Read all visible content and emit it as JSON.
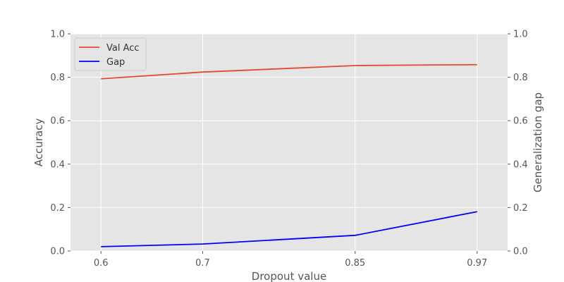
{
  "chart_data": {
    "type": "line",
    "x": [
      0.6,
      0.7,
      0.85,
      0.97
    ],
    "x_tick_labels": [
      "0.6",
      "0.7",
      "0.85",
      "0.97"
    ],
    "xlabel": "Dropout value",
    "ylabel_left": "Accuracy",
    "ylabel_right": "Generalization gap",
    "ylim_left": [
      0,
      1
    ],
    "ylim_right": [
      0,
      1
    ],
    "y_ticks_left": [
      "0.0",
      "0.2",
      "0.4",
      "0.6",
      "0.8",
      "1.0"
    ],
    "y_ticks_right": [
      "0.0",
      "0.2",
      "0.4",
      "0.6",
      "0.8",
      "1.0"
    ],
    "grid": true,
    "legend_position": "top-left",
    "background_color": "#e5e5e5",
    "series": [
      {
        "name": "Val Acc",
        "axis": "left",
        "color": "#e24a33",
        "values": [
          0.793,
          0.824,
          0.854,
          0.858
        ]
      },
      {
        "name": "Gap",
        "axis": "right",
        "color": "#0000ff",
        "values": [
          0.02,
          0.032,
          0.072,
          0.181
        ]
      }
    ]
  }
}
